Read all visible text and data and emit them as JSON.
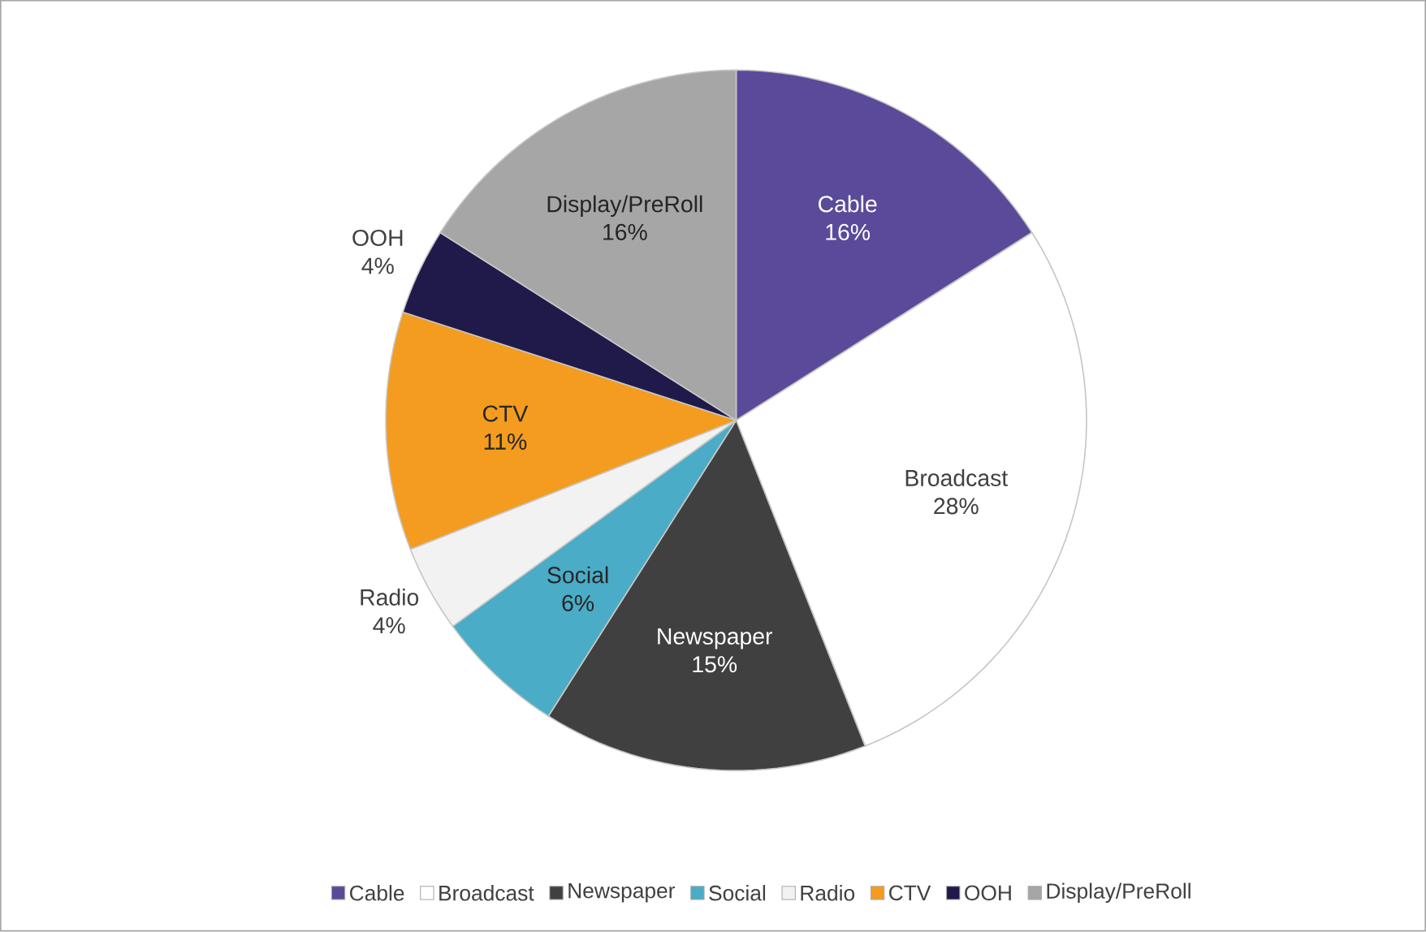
{
  "chart_data": {
    "type": "pie",
    "categories": [
      "Cable",
      "Broadcast",
      "Newspaper",
      "Social",
      "Radio",
      "CTV",
      "OOH",
      "Display/PreRoll"
    ],
    "values": [
      16,
      28,
      15,
      6,
      4,
      11,
      4,
      16
    ],
    "colors": [
      "#5b4a9a",
      "#ffffff",
      "#404040",
      "#4aacc6",
      "#f2f2f2",
      "#f39c1f",
      "#1f1a4a",
      "#a6a6a6"
    ],
    "value_labels": [
      "16%",
      "28%",
      "15%",
      "6%",
      "4%",
      "11%",
      "4%",
      "16%"
    ],
    "legend": "bottom"
  }
}
